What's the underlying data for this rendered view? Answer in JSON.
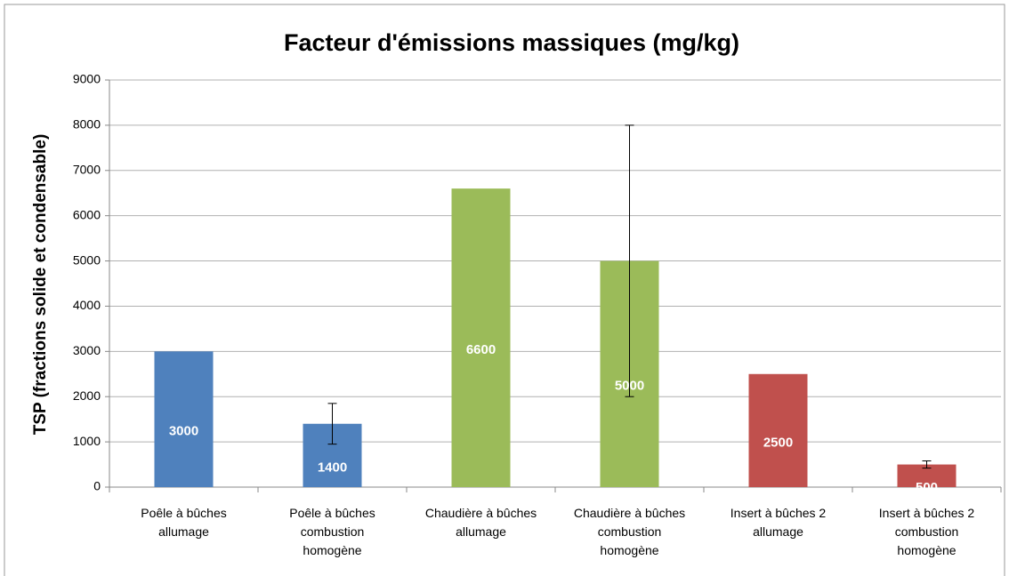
{
  "chart_data": {
    "type": "bar",
    "title": "Facteur d'émissions massiques (mg/kg)",
    "y_label": "TSP (fractions solide et condensable)",
    "categories": [
      "Poêle à bûches allumage",
      "Poêle à bûches combustion homogène",
      "Chaudière à bûches allumage",
      "Chaudière à bûches combustion homogène",
      "Insert à bûches 2 allumage",
      "Insert à bûches 2 combustion homogène"
    ],
    "values": [
      3000,
      1400,
      6600,
      5000,
      2500,
      500
    ],
    "errors": [
      null,
      450,
      null,
      3000,
      null,
      80
    ],
    "colors": [
      "#4f81bd",
      "#4f81bd",
      "#9bbb59",
      "#9bbb59",
      "#c0504d",
      "#c0504d"
    ],
    "ylim": [
      0,
      9000
    ],
    "yticks": [
      0,
      1000,
      2000,
      3000,
      4000,
      5000,
      6000,
      7000,
      8000,
      9000
    ],
    "grid": true
  }
}
